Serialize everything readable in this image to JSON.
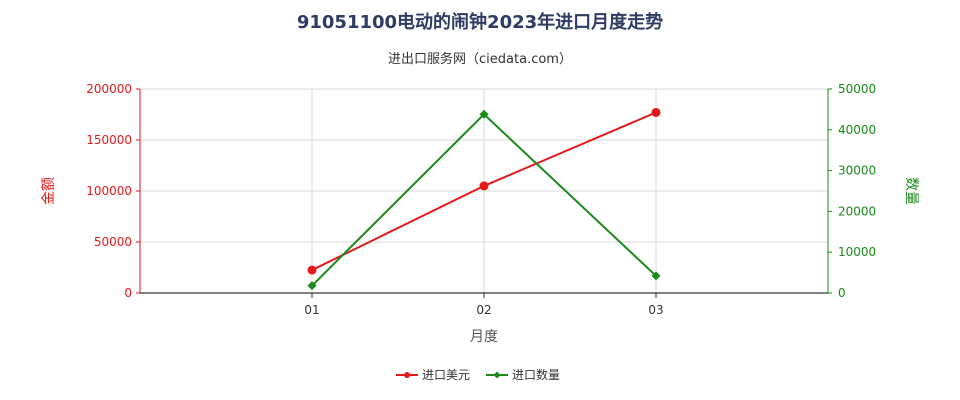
{
  "title": "91051100电动的闹钟2023年进口月度走势",
  "subtitle": "进出口服务网（ciedata.com）",
  "colors": {
    "amount": "#e31a1c",
    "quantity": "#1a8a1a",
    "title": "#2e3b63"
  },
  "chart_data": {
    "type": "line",
    "categories": [
      "01",
      "02",
      "03"
    ],
    "xlabel": "月度",
    "ylabel_left": "金额",
    "ylabel_right": "数量",
    "ylim_left": [
      0,
      200000
    ],
    "ylim_right": [
      0,
      50000
    ],
    "yticks_left": [
      "0",
      "50000",
      "100000",
      "150000",
      "200000"
    ],
    "yticks_right": [
      "0",
      "10000",
      "20000",
      "30000",
      "40000",
      "50000"
    ],
    "grid": true,
    "legend_position": "bottom",
    "series": [
      {
        "name": "进口美元",
        "axis": "left",
        "marker": "circle",
        "values": [
          22500,
          105000,
          177000
        ]
      },
      {
        "name": "进口数量",
        "axis": "right",
        "marker": "diamond",
        "values": [
          1800,
          43800,
          4200
        ]
      }
    ]
  }
}
